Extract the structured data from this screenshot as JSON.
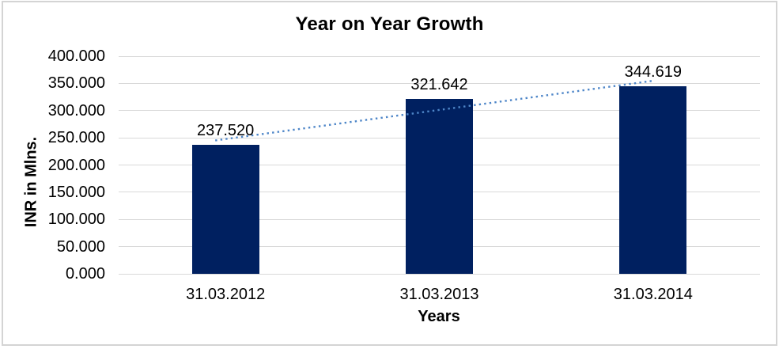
{
  "frame": {
    "border_color": "#d4d4d4",
    "background": "#ffffff"
  },
  "chart_data": {
    "type": "bar",
    "title": "Year on Year Growth",
    "xlabel": "Years",
    "ylabel": "INR in Mlns.",
    "categories": [
      "31.03.2012",
      "31.03.2013",
      "31.03.2014"
    ],
    "values": [
      237.52,
      321.642,
      344.619
    ],
    "value_labels": [
      "237.520",
      "321.642",
      "344.619"
    ],
    "ylim": [
      0,
      400
    ],
    "yticks": [
      {
        "value": 0,
        "label": "0.000"
      },
      {
        "value": 50,
        "label": "50.000"
      },
      {
        "value": 100,
        "label": "100.000"
      },
      {
        "value": 150,
        "label": "150.000"
      },
      {
        "value": 200,
        "label": "200.000"
      },
      {
        "value": 250,
        "label": "250.000"
      },
      {
        "value": 300,
        "label": "300.000"
      },
      {
        "value": 350,
        "label": "350.000"
      },
      {
        "value": 400,
        "label": "400.000"
      }
    ],
    "grid": "horizontal",
    "legend": "none",
    "bar_color": "#002060",
    "gridline_color": "#d9d9d9",
    "text_color": "#000000",
    "trendline": {
      "type": "linear",
      "style": "dotted",
      "color": "#4e86c8",
      "fit_values": [
        247.711,
        301.26,
        354.81
      ]
    }
  }
}
